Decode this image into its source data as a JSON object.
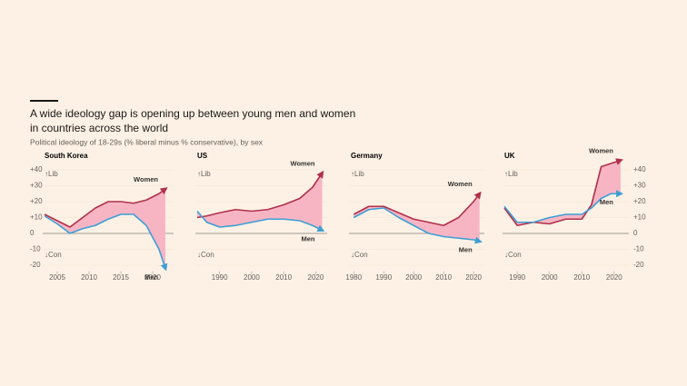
{
  "title": [
    "A wide ideology gap is opening up between young men and women",
    "in countries across the world"
  ],
  "subtitle": "Political ideology of 18-29s (% liberal minus % conservative), by sex",
  "chart_data": [
    {
      "type": "line",
      "title": "South Korea",
      "y_top_label": "↑Lib",
      "y_bottom_label": "↓Con",
      "ytick_side": "left",
      "grid": true,
      "fill_between": "#f7b5c4",
      "x": [
        2003,
        2005,
        2007,
        2009,
        2011,
        2013,
        2015,
        2017,
        2019,
        2021,
        2022
      ],
      "series": [
        {
          "name": "Women",
          "color": "#b0304b",
          "values": [
            12,
            8,
            4,
            10,
            16,
            20,
            20,
            19,
            21,
            25,
            28
          ]
        },
        {
          "name": "Men",
          "color": "#3d9fd4",
          "values": [
            11,
            6,
            0,
            3,
            5,
            9,
            12,
            12,
            5,
            -10,
            -22
          ]
        }
      ],
      "xlim": [
        2003,
        2023
      ],
      "xticks": [
        2005,
        2010,
        2015,
        2020
      ],
      "ylim": [
        -25,
        45
      ],
      "yticks": [
        {
          "value": 40,
          "label": "+40"
        },
        {
          "value": 30,
          "label": "+30"
        },
        {
          "value": 20,
          "label": "+20"
        },
        {
          "value": 10,
          "label": "+10"
        },
        0,
        -10,
        -20
      ]
    },
    {
      "type": "line",
      "title": "US",
      "y_top_label": "↑Lib",
      "y_bottom_label": "↓Con",
      "ytick_side": "none",
      "grid": true,
      "fill_between": "#f7b5c4",
      "x": [
        1983,
        1986,
        1990,
        1995,
        2000,
        2005,
        2010,
        2015,
        2019,
        2022
      ],
      "series": [
        {
          "name": "Women",
          "color": "#b0304b",
          "values": [
            10,
            11,
            13,
            15,
            14,
            15,
            18,
            22,
            29,
            38
          ]
        },
        {
          "name": "Men",
          "color": "#3d9fd4",
          "values": [
            14,
            7,
            4,
            5,
            7,
            9,
            9,
            8,
            5,
            2
          ]
        }
      ],
      "xlim": [
        1983,
        2023
      ],
      "xticks": [
        1990,
        2000,
        2010,
        2020
      ],
      "ylim": [
        -25,
        45
      ],
      "yticks": [
        40,
        30,
        20,
        10,
        0,
        -10,
        -20
      ]
    },
    {
      "type": "line",
      "title": "Germany",
      "y_top_label": "↑Lib",
      "y_bottom_label": "↓Con",
      "ytick_side": "none",
      "grid": true,
      "fill_between": "#f7b5c4",
      "x": [
        1980,
        1985,
        1990,
        1995,
        2000,
        2005,
        2010,
        2015,
        2020,
        2022
      ],
      "series": [
        {
          "name": "Women",
          "color": "#b0304b",
          "values": [
            12,
            17,
            17,
            13,
            9,
            7,
            5,
            10,
            20,
            25
          ]
        },
        {
          "name": "Men",
          "color": "#3d9fd4",
          "values": [
            10,
            15,
            16,
            10,
            5,
            0,
            -2,
            -3,
            -4,
            -5
          ]
        }
      ],
      "xlim": [
        1979,
        2023
      ],
      "xticks": [
        1980,
        1990,
        2000,
        2010,
        2020
      ],
      "ylim": [
        -25,
        45
      ],
      "yticks": [
        40,
        30,
        20,
        10,
        0,
        -10,
        -20
      ]
    },
    {
      "type": "line",
      "title": "UK",
      "y_top_label": "↑Lib",
      "y_bottom_label": "↓Con",
      "ytick_side": "right",
      "grid": true,
      "fill_between": "#f7b5c4",
      "x": [
        1986,
        1990,
        1995,
        2000,
        2005,
        2010,
        2013,
        2016,
        2019,
        2022
      ],
      "series": [
        {
          "name": "Women",
          "color": "#b0304b",
          "values": [
            16,
            5,
            7,
            6,
            9,
            9,
            18,
            42,
            44,
            46
          ]
        },
        {
          "name": "Men",
          "color": "#3d9fd4",
          "values": [
            17,
            7,
            7,
            10,
            12,
            12,
            16,
            22,
            25,
            25
          ]
        }
      ],
      "xlim": [
        1986,
        2024
      ],
      "xticks": [
        1990,
        2000,
        2010,
        2020
      ],
      "ylim": [
        -25,
        45
      ],
      "yticks": [
        {
          "value": 40,
          "label": "+40"
        },
        {
          "value": 30,
          "label": "+30"
        },
        {
          "value": 20,
          "label": "+20"
        },
        {
          "value": 10,
          "label": "+10"
        },
        0,
        -10,
        -20
      ]
    }
  ]
}
